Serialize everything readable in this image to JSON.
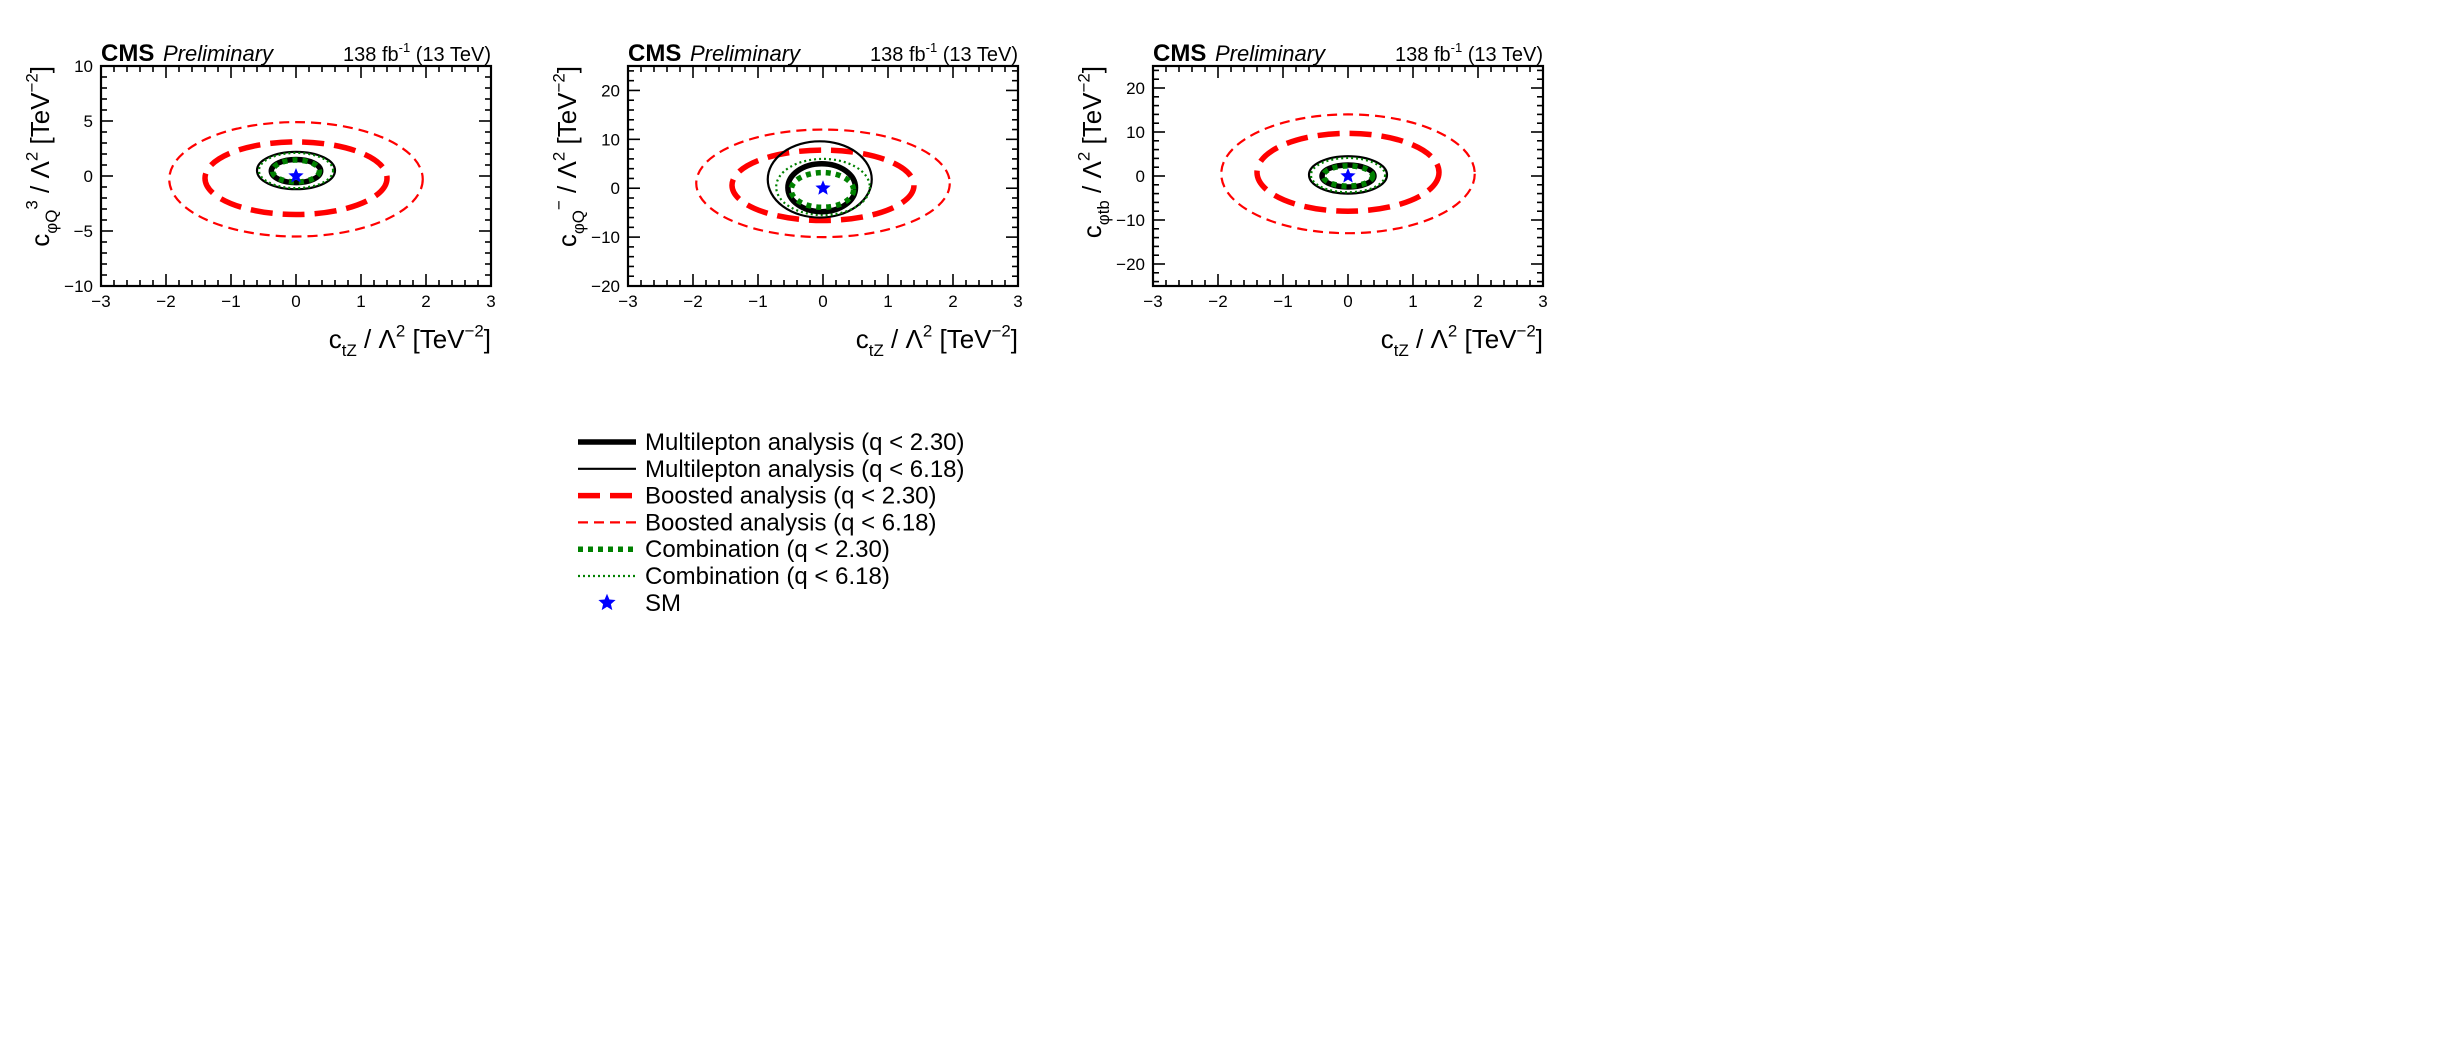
{
  "chart_data": {
    "type": "contour",
    "header": {
      "experiment": "CMS",
      "status": "Preliminary",
      "lumi": "138 fb",
      "lumi_sup": "-1",
      "energy": "(13 TeV)"
    },
    "series_styles": [
      {
        "key": "ml230",
        "label": "Multilepton analysis (q < 2.30)",
        "color": "#000000",
        "style": "solid-thick"
      },
      {
        "key": "ml618",
        "label": "Multilepton analysis (q < 6.18)",
        "color": "#000000",
        "style": "solid-thin"
      },
      {
        "key": "bo230",
        "label": "Boosted analysis (q < 2.30)",
        "color": "#ff0000",
        "style": "dashed-thick"
      },
      {
        "key": "bo618",
        "label": "Boosted analysis (q < 6.18)",
        "color": "#ff0000",
        "style": "dashed-thin"
      },
      {
        "key": "co230",
        "label": "Combination (q < 2.30)",
        "color": "#008000",
        "style": "dotted-thick"
      },
      {
        "key": "co618",
        "label": "Combination (q < 6.18)",
        "color": "#008000",
        "style": "dotted-thin"
      },
      {
        "key": "sm",
        "label": "SM",
        "color": "#0000ff",
        "style": "star"
      }
    ],
    "panels": [
      {
        "xlabel": [
          [
            "c",
            ""
          ],
          [
            "tZ",
            "sub"
          ],
          [
            " / Λ",
            ""
          ],
          [
            "2",
            "sup"
          ],
          [
            " [TeV",
            ""
          ],
          [
            "−2",
            "sup"
          ],
          [
            "]",
            ""
          ]
        ],
        "ylabel": [
          [
            "c",
            ""
          ],
          [
            "φQ",
            "sub"
          ],
          [
            "3",
            "sup"
          ],
          [
            " / Λ",
            ""
          ],
          [
            "2",
            "sup"
          ],
          [
            " [TeV",
            ""
          ],
          [
            "−2",
            "sup"
          ],
          [
            "]",
            ""
          ]
        ],
        "xlim": [
          -3,
          3
        ],
        "ylim": [
          -10,
          10
        ],
        "xticks": [
          -3,
          -2,
          -1,
          0,
          1,
          2,
          3
        ],
        "yticks": [
          -10,
          -5,
          0,
          5,
          10
        ],
        "xminor": 0.2,
        "yminor": 1,
        "sm": [
          0,
          0
        ],
        "contours": {
          "bo618": {
            "cx": 0,
            "cy": -0.3,
            "rx": 1.95,
            "ry": 5.2
          },
          "bo230": {
            "cx": 0,
            "cy": -0.2,
            "rx": 1.4,
            "ry": 3.3
          },
          "ml618": {
            "cx": 0,
            "cy": 0.5,
            "rx": 0.6,
            "ry": 1.7
          },
          "co618": {
            "cx": 0,
            "cy": 0.5,
            "rx": 0.57,
            "ry": 1.6
          },
          "ml230": {
            "cx": 0,
            "cy": 0.45,
            "rx": 0.38,
            "ry": 1.05
          },
          "co230": {
            "cx": 0,
            "cy": 0.45,
            "rx": 0.36,
            "ry": 1.0
          }
        }
      },
      {
        "xlabel": [
          [
            "c",
            ""
          ],
          [
            "tZ",
            "sub"
          ],
          [
            " / Λ",
            ""
          ],
          [
            "2",
            "sup"
          ],
          [
            " [TeV",
            ""
          ],
          [
            "−2",
            "sup"
          ],
          [
            "]",
            ""
          ]
        ],
        "ylabel": [
          [
            "c",
            ""
          ],
          [
            "φQ",
            "sub"
          ],
          [
            "−",
            "sup"
          ],
          [
            " / Λ",
            ""
          ],
          [
            "2",
            "sup"
          ],
          [
            " [TeV",
            ""
          ],
          [
            "−2",
            "sup"
          ],
          [
            "]",
            ""
          ]
        ],
        "xlim": [
          -3,
          3
        ],
        "ylim": [
          -20,
          25
        ],
        "xticks": [
          -3,
          -2,
          -1,
          0,
          1,
          2,
          3
        ],
        "yticks": [
          -20,
          -10,
          0,
          10,
          20
        ],
        "xminor": 0.2,
        "yminor": 2,
        "sm": [
          0,
          0
        ],
        "contours": {
          "bo618": {
            "cx": 0,
            "cy": 1,
            "rx": 1.95,
            "ry": 11
          },
          "bo230": {
            "cx": 0,
            "cy": 0.6,
            "rx": 1.4,
            "ry": 7.2
          },
          "ml618": {
            "cx": -0.05,
            "cy": 1.8,
            "rx": 0.8,
            "ry": 7.8
          },
          "co618": {
            "cx": 0,
            "cy": 0.25,
            "rx": 0.72,
            "ry": 5.75
          },
          "ml230": {
            "cx": -0.02,
            "cy": 0.1,
            "rx": 0.52,
            "ry": 4.9
          },
          "co230": {
            "cx": -0.01,
            "cy": -0.35,
            "rx": 0.48,
            "ry": 3.55
          }
        }
      },
      {
        "xlabel": [
          [
            "c",
            ""
          ],
          [
            "tZ",
            "sub"
          ],
          [
            " / Λ",
            ""
          ],
          [
            "2",
            "sup"
          ],
          [
            " [TeV",
            ""
          ],
          [
            "−2",
            "sup"
          ],
          [
            "]",
            ""
          ]
        ],
        "ylabel": [
          [
            "c",
            ""
          ],
          [
            "φtb",
            "sub"
          ],
          [
            " / Λ",
            ""
          ],
          [
            "2",
            "sup"
          ],
          [
            " [TeV",
            ""
          ],
          [
            "−2",
            "sup"
          ],
          [
            "]",
            ""
          ]
        ],
        "xlim": [
          -3,
          3
        ],
        "ylim": [
          -25,
          25
        ],
        "xticks": [
          -3,
          -2,
          -1,
          0,
          1,
          2,
          3
        ],
        "yticks": [
          -20,
          -10,
          0,
          10,
          20
        ],
        "xminor": 0.2,
        "yminor": 2,
        "sm": [
          0,
          0
        ],
        "contours": {
          "bo618": {
            "cx": 0,
            "cy": 0.5,
            "rx": 1.95,
            "ry": 13.5
          },
          "bo230": {
            "cx": 0,
            "cy": 0.85,
            "rx": 1.4,
            "ry": 8.85
          },
          "ml618": {
            "cx": 0,
            "cy": 0.25,
            "rx": 0.6,
            "ry": 4.25
          },
          "co618": {
            "cx": 0,
            "cy": 0.2,
            "rx": 0.57,
            "ry": 3.9
          },
          "ml230": {
            "cx": 0,
            "cy": 0,
            "rx": 0.4,
            "ry": 2.5
          },
          "co230": {
            "cx": 0,
            "cy": 0,
            "rx": 0.38,
            "ry": 2.3
          }
        }
      }
    ]
  }
}
